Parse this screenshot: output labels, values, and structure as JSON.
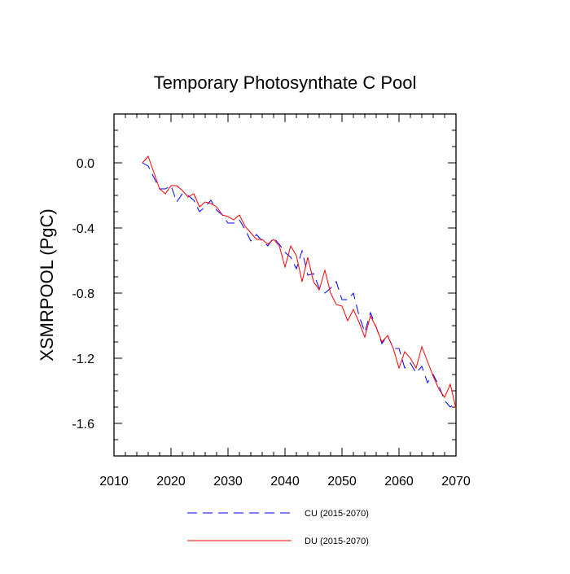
{
  "chart_data": {
    "type": "line",
    "title": "Temporary Photosynthate C Pool",
    "xlabel": "",
    "ylabel": "XSMRPOOL  (PgC)",
    "xlim": [
      2010,
      2070
    ],
    "ylim": [
      -1.8,
      0.3
    ],
    "x_ticks": [
      "2010",
      "2020",
      "2030",
      "2040",
      "2050",
      "2060",
      "2070"
    ],
    "y_ticks": [
      "0.0",
      "-0.4",
      "-0.8",
      "-1.2",
      "-1.6"
    ],
    "grid": false,
    "legend_position": "bottom",
    "series": [
      {
        "name": "CU (2015-2070)",
        "color": "#0000ff",
        "style": "dashed",
        "x": [
          2015,
          2016,
          2017,
          2018,
          2019,
          2020,
          2021,
          2022,
          2023,
          2024,
          2025,
          2026,
          2027,
          2028,
          2029,
          2030,
          2031,
          2032,
          2033,
          2034,
          2035,
          2036,
          2037,
          2038,
          2039,
          2040,
          2041,
          2042,
          2043,
          2044,
          2045,
          2046,
          2047,
          2048,
          2049,
          2050,
          2051,
          2052,
          2053,
          2054,
          2055,
          2056,
          2057,
          2058,
          2059,
          2060,
          2061,
          2062,
          2063,
          2064,
          2065,
          2066,
          2067,
          2068,
          2069,
          2070
        ],
        "values": [
          0.0,
          -0.02,
          -0.09,
          -0.16,
          -0.16,
          -0.14,
          -0.24,
          -0.19,
          -0.2,
          -0.23,
          -0.3,
          -0.27,
          -0.23,
          -0.29,
          -0.32,
          -0.37,
          -0.37,
          -0.35,
          -0.41,
          -0.48,
          -0.44,
          -0.48,
          -0.51,
          -0.46,
          -0.5,
          -0.55,
          -0.58,
          -0.65,
          -0.54,
          -0.69,
          -0.68,
          -0.77,
          -0.8,
          -0.77,
          -0.73,
          -0.84,
          -0.84,
          -0.8,
          -0.94,
          -1.04,
          -0.92,
          -1.01,
          -1.11,
          -1.06,
          -1.14,
          -1.14,
          -1.26,
          -1.23,
          -1.29,
          -1.25,
          -1.35,
          -1.3,
          -1.37,
          -1.46,
          -1.5,
          -1.47
        ]
      },
      {
        "name": "DU (2015-2070)",
        "color": "#ff0000",
        "style": "solid",
        "x": [
          2015,
          2016,
          2017,
          2018,
          2019,
          2020,
          2021,
          2022,
          2023,
          2024,
          2025,
          2026,
          2027,
          2028,
          2029,
          2030,
          2031,
          2032,
          2033,
          2034,
          2035,
          2036,
          2037,
          2038,
          2039,
          2040,
          2041,
          2042,
          2043,
          2044,
          2045,
          2046,
          2047,
          2048,
          2049,
          2050,
          2051,
          2052,
          2053,
          2054,
          2055,
          2056,
          2057,
          2058,
          2059,
          2060,
          2061,
          2062,
          2063,
          2064,
          2065,
          2066,
          2067,
          2068,
          2069,
          2070
        ],
        "values": [
          0.0,
          0.04,
          -0.06,
          -0.16,
          -0.19,
          -0.14,
          -0.14,
          -0.17,
          -0.21,
          -0.19,
          -0.27,
          -0.24,
          -0.25,
          -0.27,
          -0.32,
          -0.33,
          -0.35,
          -0.32,
          -0.39,
          -0.43,
          -0.47,
          -0.47,
          -0.5,
          -0.47,
          -0.51,
          -0.64,
          -0.51,
          -0.57,
          -0.73,
          -0.58,
          -0.73,
          -0.78,
          -0.66,
          -0.8,
          -0.87,
          -0.88,
          -0.97,
          -0.9,
          -0.98,
          -1.07,
          -0.94,
          -1.01,
          -1.1,
          -1.06,
          -1.14,
          -1.26,
          -1.16,
          -1.2,
          -1.26,
          -1.13,
          -1.22,
          -1.31,
          -1.39,
          -1.44,
          -1.36,
          -1.51
        ]
      }
    ]
  }
}
